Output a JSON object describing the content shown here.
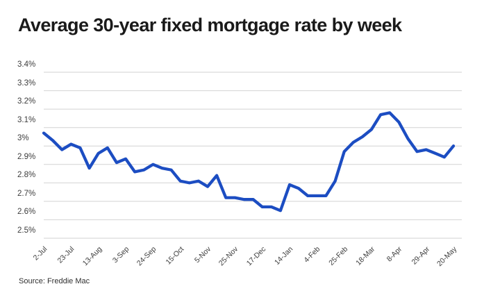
{
  "page": {
    "title": "Average 30-year fixed mortgage rate by week",
    "source": "Source: Freddie Mac"
  },
  "chart_data": {
    "type": "line",
    "title": "Average 30-year fixed mortgage rate by week",
    "series_name": "30-year fixed mortgage rate",
    "xlabel": "",
    "ylabel": "",
    "ylim": [
      2.5,
      3.4
    ],
    "grid": "horizontal",
    "legend": "none",
    "line_color": "#1c4dc2",
    "grid_color": "#d2d2d2",
    "y_ticks": [
      "3.4%",
      "3.3%",
      "3.2%",
      "3.1%",
      "3%",
      "2.9%",
      "2.8%",
      "2.7%",
      "2.6%",
      "2.5%"
    ],
    "y_tick_values": [
      3.4,
      3.3,
      3.2,
      3.1,
      3.0,
      2.9,
      2.8,
      2.7,
      2.6,
      2.5
    ],
    "x_labels": [
      "2-Jul",
      "23-Jul",
      "13-Aug",
      "3-Sep",
      "24-Sep",
      "15-Oct",
      "5-Nov",
      "25-Nov",
      "17-Dec",
      "14-Jan",
      "4-Feb",
      "25-Feb",
      "18-Mar",
      "8-Apr",
      "29-Apr",
      "20-May"
    ],
    "label_every": 3,
    "x_unit": "weekly",
    "values": [
      3.07,
      3.03,
      2.98,
      3.01,
      2.99,
      2.88,
      2.96,
      2.99,
      2.91,
      2.93,
      2.86,
      2.87,
      2.9,
      2.88,
      2.87,
      2.81,
      2.8,
      2.81,
      2.78,
      2.84,
      2.72,
      2.72,
      2.71,
      2.71,
      2.67,
      2.67,
      2.65,
      2.79,
      2.77,
      2.73,
      2.73,
      2.73,
      2.81,
      2.97,
      3.02,
      3.05,
      3.09,
      3.17,
      3.18,
      3.13,
      3.04,
      2.97,
      2.98,
      2.96,
      2.94,
      3.0
    ],
    "source": "Source: Freddie Mac"
  }
}
